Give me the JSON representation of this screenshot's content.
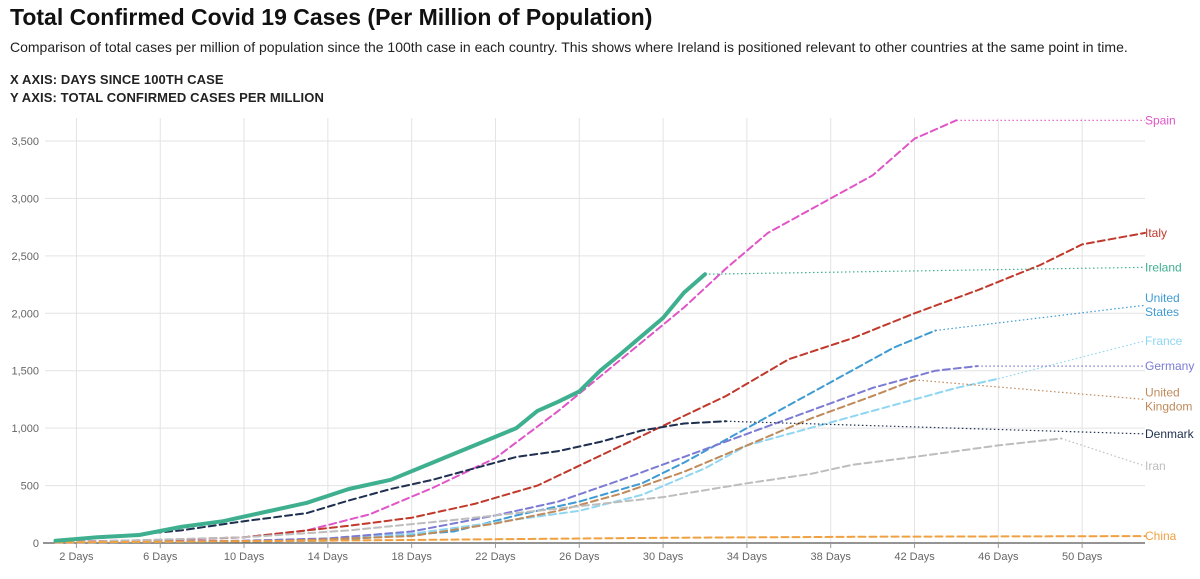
{
  "header": {
    "title": "Total Confirmed Covid 19 Cases (Per Million of Population)",
    "subtitle": "Comparison of total cases per million of population since the 100th case in each country. This shows where Ireland is positioned relevant to other countries at the same point in time.",
    "x_note": "X AXIS: DAYS SINCE 100TH CASE",
    "y_note": "Y AXIS: TOTAL CONFIRMED CASES PER MILLION"
  },
  "chart_data": {
    "type": "line",
    "title": "Total Confirmed Covid 19 Cases (Per Million of Population)",
    "subtitle": "Comparison of total cases per million of population since the 100th case in each country. This shows where Ireland is positioned relevant to other countries at the same point in time.",
    "xlabel": "X AXIS: DAYS SINCE 100TH CASE",
    "ylabel": "Y AXIS: TOTAL CONFIRMED CASES PER MILLION",
    "xlim": [
      0.5,
      53
    ],
    "ylim": [
      0,
      3700
    ],
    "x_ticks": [
      2,
      6,
      10,
      14,
      18,
      22,
      26,
      30,
      34,
      38,
      42,
      46,
      50
    ],
    "x_tick_labels": [
      "2 Days",
      "6 Days",
      "10 Days",
      "14 Days",
      "18 Days",
      "22 Days",
      "26 Days",
      "30 Days",
      "34 Days",
      "38 Days",
      "42 Days",
      "46 Days",
      "50 Days"
    ],
    "y_ticks": [
      0,
      500,
      1000,
      1500,
      2000,
      2500,
      3000,
      3500
    ],
    "y_tick_labels": [
      "0",
      "500",
      "1,000",
      "1,500",
      "2,000",
      "2,500",
      "3,000",
      "3,500"
    ],
    "grid": true,
    "legend": "direct labels at right end of lines",
    "series": [
      {
        "name": "Spain",
        "color": "#e055c7",
        "style": "dashed",
        "end_style": "dotted",
        "x": [
          1,
          4,
          7,
          10,
          13,
          16,
          19,
          22,
          25,
          28,
          31,
          33,
          35,
          37,
          40,
          42,
          44
        ],
        "y": [
          10,
          20,
          30,
          50,
          110,
          250,
          480,
          740,
          1150,
          1600,
          2050,
          2390,
          2700,
          2900,
          3200,
          3520,
          3680
        ],
        "end_x": 53,
        "end_y": 3680
      },
      {
        "name": "Italy",
        "color": "#c0392b",
        "style": "dashed",
        "x": [
          1,
          5,
          10,
          15,
          18,
          21,
          24,
          27,
          30,
          33,
          36,
          39,
          42,
          45,
          48,
          50,
          53
        ],
        "y": [
          10,
          20,
          50,
          150,
          220,
          340,
          500,
          760,
          1020,
          1280,
          1600,
          1780,
          2000,
          2200,
          2420,
          2600,
          2700
        ]
      },
      {
        "name": "Ireland",
        "color": "#3fb08f",
        "style": "solid",
        "end_style": "dotted",
        "x": [
          1,
          3,
          5,
          7,
          9,
          11,
          13,
          15,
          17,
          19,
          21,
          23,
          24,
          25,
          26,
          27,
          28,
          30,
          31,
          32
        ],
        "y": [
          20,
          50,
          70,
          140,
          190,
          270,
          350,
          470,
          550,
          700,
          850,
          1000,
          1150,
          1230,
          1320,
          1500,
          1650,
          1960,
          2180,
          2340
        ],
        "end_x": 53,
        "end_y": 2400
      },
      {
        "name": "United States",
        "label_lines": [
          "United",
          "States"
        ],
        "color": "#3e9bd3",
        "style": "dashed",
        "end_style": "dotted",
        "x": [
          1,
          8,
          14,
          20,
          23,
          26,
          29,
          31,
          33,
          35,
          37,
          39,
          41,
          43
        ],
        "y": [
          5,
          10,
          20,
          100,
          240,
          360,
          520,
          700,
          900,
          1100,
          1300,
          1500,
          1700,
          1850
        ],
        "end_x": 53,
        "end_y": 2070
      },
      {
        "name": "France",
        "color": "#8fd6f2",
        "style": "dashed",
        "end_style": "dotted",
        "x": [
          1,
          12,
          18,
          22,
          26,
          29,
          32,
          34,
          36,
          38,
          40,
          42,
          44,
          46
        ],
        "y": [
          5,
          20,
          80,
          180,
          280,
          420,
          650,
          850,
          950,
          1050,
          1150,
          1250,
          1350,
          1430
        ],
        "end_x": 53,
        "end_y": 1760
      },
      {
        "name": "Germany",
        "color": "#7b7bd4",
        "style": "dashed",
        "end_style": "dotted",
        "x": [
          1,
          10,
          14,
          18,
          22,
          25,
          28,
          31,
          34,
          37,
          40,
          43,
          45
        ],
        "y": [
          5,
          20,
          40,
          100,
          240,
          360,
          550,
          750,
          950,
          1150,
          1350,
          1500,
          1540
        ],
        "end_x": 53,
        "end_y": 1540
      },
      {
        "name": "United Kingdom",
        "label_lines": [
          "United",
          "Kingdom"
        ],
        "color": "#c08a5a",
        "style": "dashed",
        "end_style": "dotted",
        "x": [
          1,
          12,
          18,
          22,
          25,
          28,
          31,
          34,
          37,
          40,
          42
        ],
        "y": [
          5,
          20,
          60,
          170,
          280,
          430,
          620,
          850,
          1080,
          1280,
          1420
        ],
        "end_x": 53,
        "end_y": 1250
      },
      {
        "name": "Denmark",
        "color": "#1e2f4f",
        "style": "dashed",
        "end_style": "dotted",
        "x": [
          1,
          4,
          7,
          10,
          13,
          15,
          17,
          19,
          21,
          23,
          25,
          27,
          29,
          31,
          33
        ],
        "y": [
          20,
          60,
          110,
          190,
          260,
          370,
          470,
          550,
          650,
          750,
          800,
          880,
          980,
          1040,
          1060
        ],
        "end_x": 53,
        "end_y": 950
      },
      {
        "name": "Iran",
        "color": "#bdbdbd",
        "style": "dashed",
        "end_style": "dotted",
        "x": [
          1,
          10,
          15,
          20,
          25,
          30,
          34,
          37,
          39,
          42,
          46,
          49
        ],
        "y": [
          5,
          50,
          110,
          200,
          300,
          400,
          520,
          600,
          680,
          750,
          850,
          910
        ],
        "end_x": 53,
        "end_y": 670
      },
      {
        "name": "China",
        "color": "#f0a040",
        "style": "dashed",
        "x": [
          1,
          10,
          20,
          30,
          40,
          53
        ],
        "y": [
          5,
          15,
          30,
          45,
          55,
          60
        ]
      }
    ]
  }
}
